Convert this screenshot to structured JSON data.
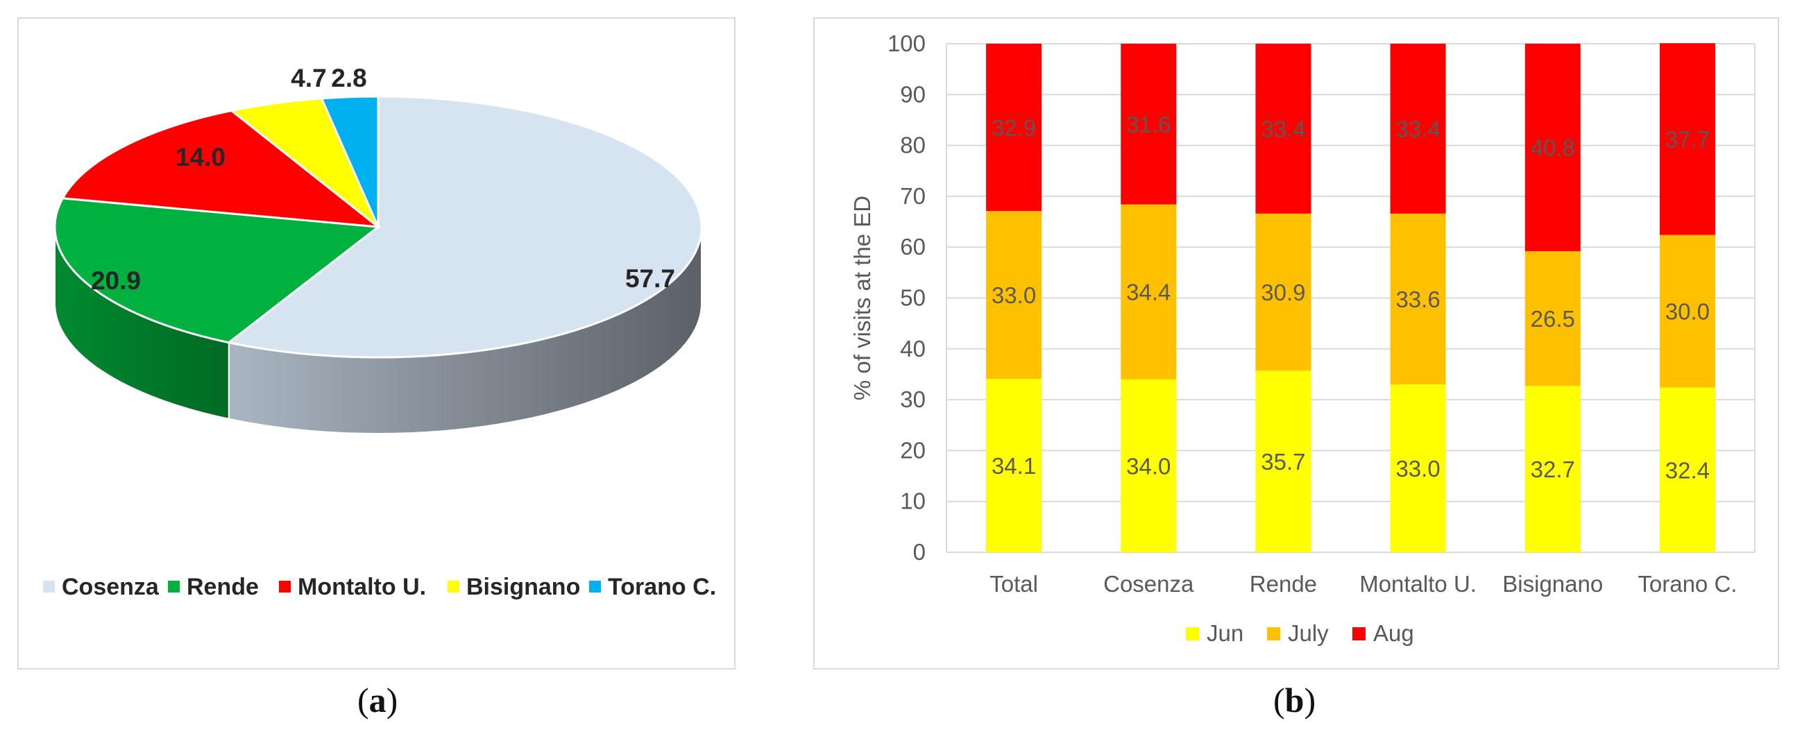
{
  "colors": {
    "cosenza": "#d6e4f1",
    "cosenza_side_dark": "#5c6168",
    "cosenza_side_light": "#a9b5c1",
    "rende": "#00b140",
    "rende_side": "#008a30",
    "montalto": "#ff0000",
    "bisignano": "#ffff00",
    "torano": "#00b0f0",
    "jun": "#ffff00",
    "july": "#ffc000",
    "aug": "#ff0000",
    "gridline": "#d9d9d9",
    "axis_text": "#595959",
    "bar_label": "#595959"
  },
  "captions": {
    "a_open": "(",
    "a_letter": "a",
    "a_close": ")",
    "b_open": "(",
    "b_letter": "b",
    "b_close": ")"
  },
  "chart_data": [
    {
      "type": "pie",
      "title": "",
      "categories": [
        "Cosenza",
        "Rende",
        "Montalto U.",
        "Bisignano",
        "Torano C."
      ],
      "values": [
        57.7,
        20.9,
        14.0,
        4.7,
        2.8
      ],
      "labels": [
        "57.7",
        "20.9",
        "14.0",
        "4.7",
        "2.8"
      ],
      "legend": "bottom",
      "style": "3d"
    },
    {
      "type": "bar",
      "stacked": true,
      "title": "",
      "categories": [
        "Total",
        "Cosenza",
        "Rende",
        "Montalto U.",
        "Bisignano",
        "Torano C."
      ],
      "series": [
        {
          "name": "Jun",
          "values": [
            34.1,
            34.0,
            35.7,
            33.0,
            32.7,
            32.4
          ],
          "labels": [
            "34.1",
            "34.0",
            "35.7",
            "33.0",
            "32.7",
            "32.4"
          ]
        },
        {
          "name": "July",
          "values": [
            33.0,
            34.4,
            30.9,
            33.6,
            26.5,
            30.0
          ],
          "labels": [
            "33.0",
            "34.4",
            "30.9",
            "33.6",
            "26.5",
            "30.0"
          ]
        },
        {
          "name": "Aug",
          "values": [
            32.9,
            31.6,
            33.4,
            33.4,
            40.8,
            37.7
          ],
          "labels": [
            "32.9",
            "31.6",
            "33.4",
            "33.4",
            "40.8",
            "37.7"
          ]
        }
      ],
      "xlabel": "",
      "ylabel": "% of visits at  the ED",
      "ylim": [
        0,
        100
      ],
      "yticks": [
        "0",
        "10",
        "20",
        "30",
        "40",
        "50",
        "60",
        "70",
        "80",
        "90",
        "100"
      ],
      "grid": true,
      "legend": "bottom"
    }
  ]
}
